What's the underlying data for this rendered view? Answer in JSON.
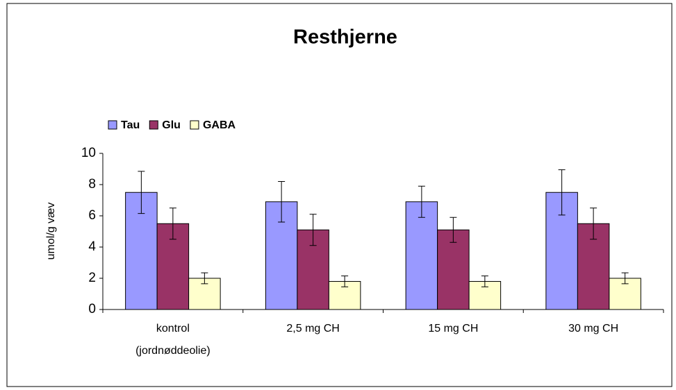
{
  "chart_data": {
    "type": "bar",
    "title": "Resthjerne",
    "y_label": "umol/g væv",
    "categories": [
      "kontrol (jordnøddeolie)",
      "2,5 mg CH",
      "15 mg CH",
      "30 mg CH"
    ],
    "series": [
      {
        "name": "Tau",
        "color": "#9999ff",
        "values": [
          7.5,
          6.9,
          6.9,
          7.5
        ],
        "errors": [
          1.35,
          1.3,
          1.0,
          1.45
        ]
      },
      {
        "name": "Glu",
        "color": "#993366",
        "values": [
          5.5,
          5.1,
          5.1,
          5.5
        ],
        "errors": [
          1.0,
          1.0,
          0.8,
          1.0
        ]
      },
      {
        "name": "GABA",
        "color": "#ffffcc",
        "values": [
          2.0,
          1.8,
          1.8,
          2.0
        ],
        "errors": [
          0.35,
          0.35,
          0.35,
          0.35
        ]
      }
    ],
    "ylim": [
      0,
      10
    ],
    "yticks": [
      0,
      2,
      4,
      6,
      8,
      10
    ],
    "grid": false,
    "legend": "top-left"
  }
}
